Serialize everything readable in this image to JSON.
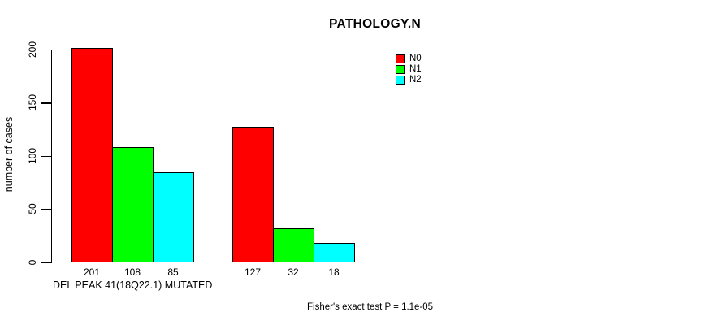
{
  "chart_data": {
    "type": "bar",
    "title": "PATHOLOGY.N",
    "xlabel": "DEL PEAK 41(18Q22.1) MUTATED",
    "ylabel": "number of cases",
    "ylim": [
      0,
      200
    ],
    "yticks": [
      0,
      50,
      100,
      150,
      200
    ],
    "grid": false,
    "legend_position": "top-center-right-inside",
    "bar_value_labels_shown": true,
    "categories": [
      "",
      ""
    ],
    "series": [
      {
        "name": "N0",
        "color": "#ff0000",
        "values": [
          201,
          127
        ]
      },
      {
        "name": "N1",
        "color": "#00ff00",
        "values": [
          108,
          32
        ]
      },
      {
        "name": "N2",
        "color": "#00ffff",
        "values": [
          85,
          18
        ]
      }
    ],
    "annotation": "Fisher's exact test P = 1.1e-05"
  }
}
